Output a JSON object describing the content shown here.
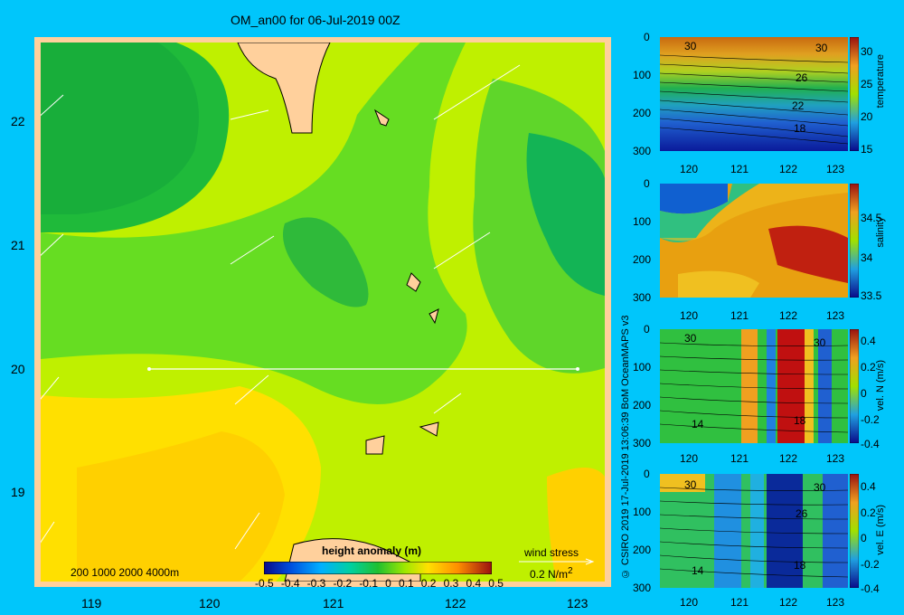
{
  "title": "OM_an00 for 06-Jul-2019 00Z",
  "map": {
    "lat_ticks": [
      "22",
      "21",
      "20",
      "19"
    ],
    "lon_ticks": [
      "119",
      "120",
      "121",
      "122",
      "123"
    ],
    "depth_legend": "200  1000  2000  4000m",
    "colorbar_title": "height anomaly (m)",
    "colorbar_ticks": [
      "-0.5",
      "-0.4",
      "-0.3",
      "-0.2",
      "-0.1",
      "0",
      "0.1",
      "0.2",
      "0.3",
      "0.4",
      "0.5"
    ],
    "wind_label": "wind stress",
    "wind_scale": "0.2 N/m",
    "wind_scale_sup": "2"
  },
  "copyright": "© CSIRO 2019   17-Jul-2019 13:06:39 BoM OceanMAPS v3",
  "panels": [
    {
      "id": "temperature",
      "ylabel": "temperature",
      "depth_ticks": [
        "0",
        "100",
        "200",
        "300"
      ],
      "x_ticks": [
        "120",
        "121",
        "122",
        "123"
      ],
      "cbar_ticks": [
        "30",
        "25",
        "20",
        "15"
      ],
      "contour_labels": [
        "30",
        "30",
        "26",
        "22",
        "18"
      ]
    },
    {
      "id": "salinity",
      "ylabel": "salinity",
      "depth_ticks": [
        "0",
        "100",
        "200",
        "300"
      ],
      "x_ticks": [
        "120",
        "121",
        "122",
        "123"
      ],
      "cbar_ticks": [
        "34.5",
        "34",
        "33.5"
      ],
      "contour_labels": []
    },
    {
      "id": "veln",
      "ylabel": "vel. N  (m/s)",
      "depth_ticks": [
        "0",
        "100",
        "200",
        "300"
      ],
      "x_ticks": [
        "120",
        "121",
        "122",
        "123"
      ],
      "cbar_ticks": [
        "0.4",
        "0.2",
        "0",
        "-0.2",
        "-0.4"
      ],
      "contour_labels": [
        "30",
        "30",
        "14",
        "18"
      ]
    },
    {
      "id": "vele",
      "ylabel": "vel. E  (m/s)",
      "depth_ticks": [
        "0",
        "100",
        "200",
        "300"
      ],
      "x_ticks": [
        "120",
        "121",
        "122",
        "123"
      ],
      "cbar_ticks": [
        "0.4",
        "0.2",
        "0",
        "-0.2",
        "-0.4"
      ],
      "contour_labels": [
        "30",
        "30",
        "26",
        "14",
        "18"
      ]
    }
  ],
  "colors": {
    "background": "#00c6fb",
    "land": "#ffd09c",
    "field_low": "#1fae3c",
    "field_mid": "#7fe01e",
    "field_high": "#ffd000"
  }
}
